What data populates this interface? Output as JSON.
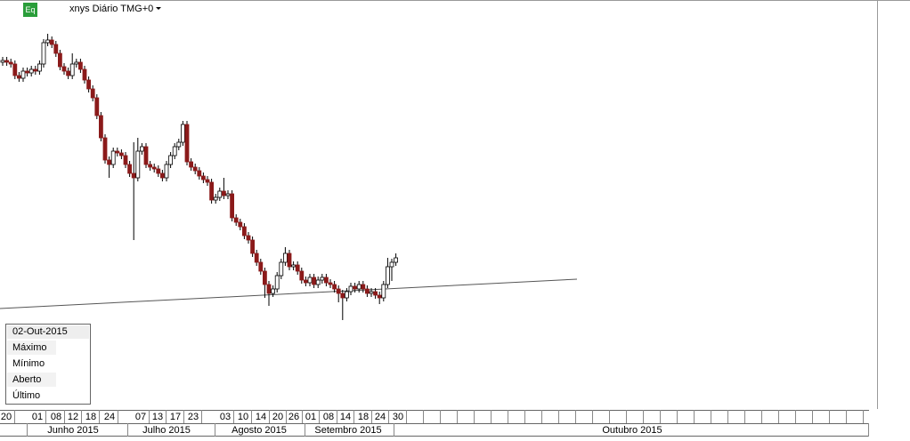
{
  "header": {
    "icon": "Eq",
    "title": "xnys Diário TMG+0"
  },
  "info_box": {
    "date": "02-Out-2015",
    "rows": [
      "Máximo",
      "Mínimo",
      "Aberto",
      "Último"
    ]
  },
  "date_axis": {
    "days": [
      "20",
      "01",
      "08",
      "12",
      "18",
      "24",
      "07",
      "13",
      "17",
      "23",
      "03",
      "10",
      "14",
      "20",
      "26",
      "01",
      "08",
      "14",
      "18",
      "24",
      "30"
    ],
    "months": [
      "Junho 2015",
      "Julho 2015",
      "Agosto 2015",
      "Setembro 2015",
      "Outubro 2015"
    ]
  },
  "chart_data": {
    "type": "candlestick",
    "ylim": [
      40,
      400
    ],
    "up_color": "#ffffff",
    "down_color": "#8b1a1a",
    "open": [
      330,
      332,
      330,
      328,
      315,
      312,
      320,
      318,
      322,
      320,
      328,
      352,
      355,
      350,
      340,
      325,
      320,
      315,
      328,
      330,
      322,
      310,
      300,
      290,
      270,
      245,
      220,
      215,
      230,
      228,
      225,
      215,
      205,
      200,
      230,
      235,
      215,
      212,
      210,
      205,
      200,
      215,
      225,
      235,
      240,
      260,
      218,
      212,
      208,
      202,
      198,
      195,
      175,
      178,
      185,
      180,
      182,
      155,
      150,
      145,
      135,
      130,
      115,
      105,
      95,
      80,
      70,
      75,
      90,
      105,
      115,
      100,
      102,
      95,
      85,
      82,
      88,
      80,
      85,
      88,
      82,
      80,
      75,
      70,
      65,
      72,
      78,
      75,
      80,
      75,
      70,
      72,
      68,
      65,
      80,
      100,
      105
    ],
    "high": [
      336,
      336,
      334,
      332,
      319,
      324,
      324,
      326,
      326,
      332,
      356,
      362,
      359,
      354,
      344,
      329,
      324,
      340,
      334,
      334,
      326,
      314,
      304,
      294,
      274,
      249,
      224,
      234,
      234,
      232,
      229,
      219,
      240,
      245,
      239,
      239,
      219,
      216,
      214,
      209,
      219,
      229,
      239,
      244,
      264,
      264,
      222,
      216,
      212,
      206,
      202,
      199,
      182,
      189,
      200,
      186,
      186,
      159,
      154,
      149,
      139,
      134,
      119,
      109,
      99,
      84,
      79,
      94,
      109,
      122,
      119,
      106,
      106,
      99,
      89,
      92,
      92,
      89,
      92,
      92,
      86,
      84,
      79,
      74,
      76,
      82,
      82,
      84,
      84,
      79,
      76,
      76,
      72,
      84,
      110,
      109,
      115
    ],
    "low": [
      326,
      326,
      324,
      311,
      308,
      308,
      314,
      314,
      316,
      316,
      324,
      348,
      346,
      336,
      321,
      316,
      311,
      311,
      324,
      318,
      306,
      296,
      286,
      266,
      241,
      216,
      200,
      211,
      224,
      221,
      211,
      201,
      130,
      196,
      226,
      211,
      208,
      206,
      201,
      196,
      196,
      211,
      221,
      231,
      236,
      214,
      208,
      204,
      198,
      194,
      191,
      171,
      171,
      174,
      176,
      176,
      151,
      146,
      141,
      131,
      126,
      111,
      101,
      91,
      65,
      56,
      66,
      71,
      86,
      101,
      96,
      96,
      91,
      81,
      78,
      78,
      76,
      76,
      81,
      78,
      76,
      71,
      60,
      40,
      61,
      68,
      71,
      71,
      71,
      66,
      66,
      64,
      58,
      61,
      76,
      84,
      101
    ],
    "close": [
      332,
      330,
      328,
      315,
      312,
      320,
      318,
      322,
      320,
      328,
      352,
      355,
      350,
      340,
      325,
      320,
      315,
      328,
      330,
      322,
      310,
      300,
      290,
      270,
      245,
      220,
      215,
      230,
      228,
      225,
      215,
      205,
      200,
      230,
      235,
      215,
      212,
      210,
      205,
      200,
      215,
      225,
      235,
      240,
      260,
      218,
      212,
      208,
      202,
      198,
      195,
      175,
      178,
      185,
      180,
      182,
      155,
      150,
      145,
      135,
      130,
      115,
      105,
      95,
      80,
      70,
      75,
      90,
      105,
      115,
      100,
      102,
      95,
      85,
      82,
      88,
      80,
      85,
      88,
      82,
      80,
      75,
      70,
      65,
      72,
      78,
      75,
      80,
      75,
      70,
      72,
      68,
      65,
      80,
      100,
      105,
      110
    ]
  }
}
